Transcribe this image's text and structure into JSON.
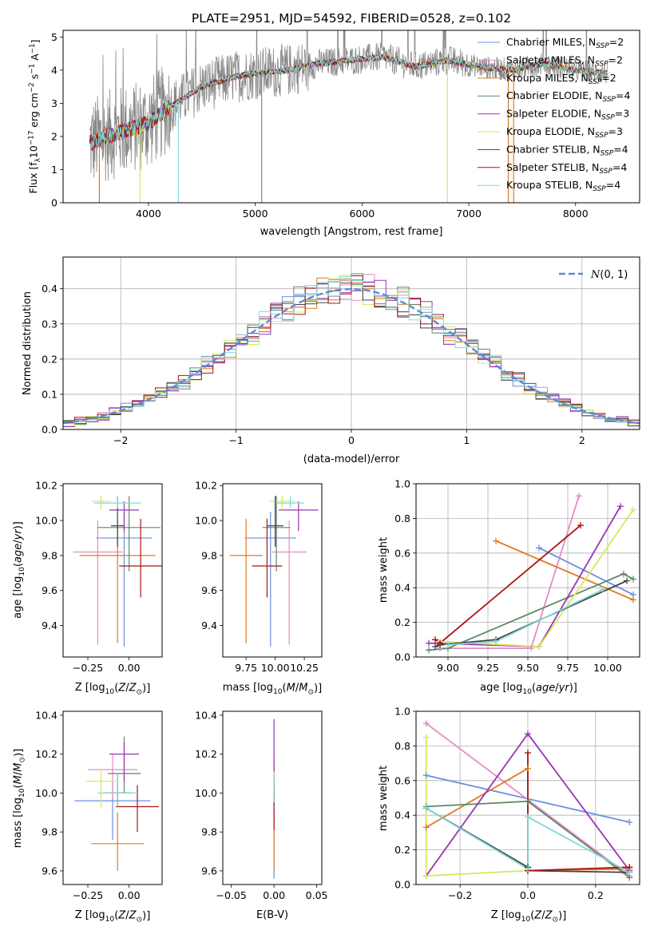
{
  "title": "PLATE=2951, MJD=54592, FIBERID=0528, z=0.102",
  "colors": {
    "chabrier_miles": "#6a8fe0",
    "salpeter_miles": "#e48bc4",
    "kroupa_miles": "#e07a22",
    "chabrier_elodie": "#5b8a62",
    "salpeter_elodie": "#9c34b8",
    "kroupa_elodie": "#d6e85a",
    "chabrier_stelib": "#444444",
    "salpeter_stelib": "#a81515",
    "kroupa_stelib": "#7fd9dd",
    "data_gray": "#888888",
    "gaussian": "#5b8bd6"
  },
  "chart_data": [
    {
      "id": "spectrum",
      "type": "line",
      "xlabel": "wavelength [Angstrom, rest frame]",
      "ylabel": "Flux [f_λ 10^-17 erg cm^-2 s^-1 A^-1]",
      "xlim": [
        3200,
        8600
      ],
      "ylim": [
        0,
        5.2
      ],
      "xticks": [
        "4000",
        "5000",
        "6000",
        "7000",
        "8000"
      ],
      "yticks": [
        "0",
        "1",
        "2",
        "3",
        "4",
        "5"
      ],
      "continuum": {
        "x": [
          3450,
          3600,
          3800,
          4000,
          4200,
          4500,
          4800,
          5000,
          5300,
          5600,
          5900,
          6200,
          6500,
          6800,
          7100,
          7400,
          7700,
          8000,
          8300
        ],
        "y": [
          1.8,
          2.0,
          2.2,
          2.4,
          2.9,
          3.5,
          3.8,
          3.9,
          4.0,
          4.2,
          4.3,
          4.4,
          4.1,
          4.3,
          4.1,
          4.0,
          4.2,
          4.0,
          3.9
        ]
      },
      "legend": [
        {
          "name": "Chabrier MILES, N_SSP=2",
          "key": "chabrier_miles"
        },
        {
          "name": "Salpeter MILES, N_SSP=2",
          "key": "salpeter_miles"
        },
        {
          "name": "Kroupa MILES, N_SSP=2",
          "key": "kroupa_miles"
        },
        {
          "name": "Chabrier ELODIE, N_SSP=4",
          "key": "chabrier_elodie"
        },
        {
          "name": "Salpeter ELODIE, N_SSP=3",
          "key": "salpeter_elodie"
        },
        {
          "name": "Kroupa ELODIE, N_SSP=3",
          "key": "kroupa_elodie"
        },
        {
          "name": "Chabrier STELIB, N_SSP=4",
          "key": "chabrier_stelib"
        },
        {
          "name": "Salpeter STELIB, N_SSP=4",
          "key": "salpeter_stelib"
        },
        {
          "name": "Kroupa STELIB, N_SSP=4",
          "key": "kroupa_stelib"
        }
      ]
    },
    {
      "id": "residuals",
      "type": "line",
      "xlabel": "(data-model)/error",
      "ylabel": "Normed distribution",
      "xlim": [
        -2.5,
        2.5
      ],
      "ylim": [
        0,
        0.49
      ],
      "xticks": [
        "-2",
        "-1",
        "0",
        "1",
        "2"
      ],
      "yticks": [
        "0.0",
        "0.1",
        "0.2",
        "0.3",
        "0.4"
      ],
      "gaussian_label": "N(0,1)",
      "grid": true,
      "bins": {
        "start": -2.5,
        "width": 0.1,
        "count": 50
      }
    },
    {
      "id": "z_age",
      "type": "scatter",
      "xlabel": "Z [log10(Z/Z☉)]",
      "ylabel": "age [log10(age/yr)]",
      "xlim": [
        -0.4,
        0.2
      ],
      "ylim": [
        9.22,
        10.21
      ],
      "xticks": [
        "-0.25",
        "0.00"
      ],
      "yticks": [
        "9.4",
        "9.6",
        "9.8",
        "10.0",
        "10.2"
      ],
      "points": [
        {
          "key": "chabrier_miles",
          "x": -0.03,
          "y": 9.9,
          "xerr": 0.17,
          "yerr": [
            0.62,
            0.15
          ]
        },
        {
          "key": "salpeter_miles",
          "x": -0.19,
          "y": 9.82,
          "xerr": 0.15,
          "yerr": [
            0.53,
            0.18
          ]
        },
        {
          "key": "kroupa_miles",
          "x": -0.07,
          "y": 9.8,
          "xerr": 0.23,
          "yerr": [
            0.5,
            0.21
          ]
        },
        {
          "key": "chabrier_elodie",
          "x": 0.0,
          "y": 9.96,
          "xerr": 0.19,
          "yerr": [
            0.25,
            0.18
          ]
        },
        {
          "key": "salpeter_elodie",
          "x": -0.03,
          "y": 10.06,
          "xerr": 0.09,
          "yerr": [
            0.12,
            0.05
          ]
        },
        {
          "key": "kroupa_elodie",
          "x": -0.17,
          "y": 10.11,
          "xerr": 0.06,
          "yerr": [
            0.05,
            0.03
          ]
        },
        {
          "key": "chabrier_stelib",
          "x": -0.07,
          "y": 9.97,
          "xerr": 0.04,
          "yerr": [
            0.12,
            0.17
          ]
        },
        {
          "key": "salpeter_stelib",
          "x": 0.07,
          "y": 9.74,
          "xerr": 0.13,
          "yerr": [
            0.18,
            0.27
          ]
        },
        {
          "key": "kroupa_stelib",
          "x": -0.07,
          "y": 10.1,
          "xerr": 0.14,
          "yerr": [
            0.03,
            0.04
          ]
        }
      ]
    },
    {
      "id": "mass_age",
      "type": "scatter",
      "xlabel": "mass [log10(M/M☉)]",
      "ylabel": "",
      "xlim": [
        9.55,
        10.4
      ],
      "ylim": [
        9.22,
        10.21
      ],
      "xticks": [
        "9.75",
        "10.00",
        "10.25"
      ],
      "yticks": [
        "9.4",
        "9.6",
        "9.8",
        "10.0",
        "10.2"
      ],
      "points": [
        {
          "key": "chabrier_miles",
          "x": 9.96,
          "y": 9.9,
          "xerr": 0.22,
          "yerr": [
            0.62,
            0.15
          ]
        },
        {
          "key": "salpeter_miles",
          "x": 10.12,
          "y": 9.82,
          "xerr": 0.15,
          "yerr": [
            0.53,
            0.18
          ]
        },
        {
          "key": "kroupa_miles",
          "x": 9.75,
          "y": 9.8,
          "xerr": 0.14,
          "yerr": [
            0.5,
            0.21
          ]
        },
        {
          "key": "chabrier_elodie",
          "x": 10.01,
          "y": 9.96,
          "xerr": 0.12,
          "yerr": [
            0.25,
            0.18
          ]
        },
        {
          "key": "salpeter_elodie",
          "x": 10.2,
          "y": 10.06,
          "xerr": 0.17,
          "yerr": [
            0.12,
            0.05
          ]
        },
        {
          "key": "kroupa_elodie",
          "x": 10.06,
          "y": 10.11,
          "xerr": 0.11,
          "yerr": [
            0.05,
            0.03
          ]
        },
        {
          "key": "chabrier_stelib",
          "x": 10.0,
          "y": 9.97,
          "xerr": 0.07,
          "yerr": [
            0.12,
            0.17
          ]
        },
        {
          "key": "salpeter_stelib",
          "x": 9.93,
          "y": 9.74,
          "xerr": 0.13,
          "yerr": [
            0.18,
            0.27
          ]
        },
        {
          "key": "kroupa_stelib",
          "x": 10.13,
          "y": 10.1,
          "xerr": 0.12,
          "yerr": [
            0.03,
            0.04
          ]
        }
      ]
    },
    {
      "id": "age_weight",
      "type": "line",
      "xlabel": "age [log10(age/yr)]",
      "ylabel": "mass weight",
      "xlim": [
        8.8,
        10.2
      ],
      "ylim": [
        0,
        1.0
      ],
      "xticks": [
        "9.00",
        "9.25",
        "9.50",
        "9.75",
        "10.00"
      ],
      "yticks": [
        "0.0",
        "0.2",
        "0.4",
        "0.6",
        "0.8",
        "1.0"
      ],
      "grid": true,
      "series": [
        {
          "key": "chabrier_miles",
          "x": [
            9.57,
            10.16
          ],
          "y": [
            0.63,
            0.36
          ]
        },
        {
          "key": "salpeter_miles",
          "x": [
            8.95,
            9.52,
            9.82
          ],
          "y": [
            0.05,
            0.05,
            0.93
          ]
        },
        {
          "key": "kroupa_miles",
          "x": [
            9.3,
            10.16
          ],
          "y": [
            0.67,
            0.33
          ]
        },
        {
          "key": "chabrier_elodie",
          "x": [
            8.88,
            9.0,
            10.1,
            10.16
          ],
          "y": [
            0.04,
            0.05,
            0.48,
            0.45
          ]
        },
        {
          "key": "salpeter_elodie",
          "x": [
            8.88,
            9.57,
            10.08
          ],
          "y": [
            0.08,
            0.06,
            0.87
          ]
        },
        {
          "key": "kroupa_elodie",
          "x": [
            8.95,
            9.57,
            10.16
          ],
          "y": [
            0.09,
            0.06,
            0.85
          ]
        },
        {
          "key": "chabrier_stelib",
          "x": [
            8.92,
            8.95,
            9.3,
            10.12
          ],
          "y": [
            0.06,
            0.07,
            0.1,
            0.44
          ]
        },
        {
          "key": "salpeter_stelib",
          "x": [
            8.92,
            8.95,
            9.83
          ],
          "y": [
            0.1,
            0.08,
            0.76
          ]
        },
        {
          "key": "kroupa_stelib",
          "x": [
            9.0,
            9.3,
            9.97
          ],
          "y": [
            0.07,
            0.09,
            0.39
          ]
        }
      ]
    },
    {
      "id": "z_mass",
      "type": "scatter",
      "xlabel": "Z [log10(Z/Z☉)]",
      "ylabel": "mass [log10(M/M☉)]",
      "xlim": [
        -0.4,
        0.2
      ],
      "ylim": [
        9.53,
        10.42
      ],
      "xticks": [
        "-0.25",
        "0.00"
      ],
      "yticks": [
        "9.6",
        "9.8",
        "10.0",
        "10.2",
        "10.4"
      ],
      "points": [
        {
          "key": "chabrier_miles",
          "x": -0.1,
          "y": 9.96,
          "xerr": 0.23,
          "yerr": [
            0.2,
            0.1
          ]
        },
        {
          "key": "salpeter_miles",
          "x": -0.1,
          "y": 10.12,
          "xerr": 0.15,
          "yerr": [
            0.15,
            0.08
          ]
        },
        {
          "key": "kroupa_miles",
          "x": -0.07,
          "y": 9.74,
          "xerr": 0.16,
          "yerr": [
            0.14,
            0.16
          ]
        },
        {
          "key": "chabrier_elodie",
          "x": -0.03,
          "y": 10.1,
          "xerr": 0.1,
          "yerr": [
            0.1,
            0.19
          ]
        },
        {
          "key": "salpeter_elodie",
          "x": -0.03,
          "y": 10.2,
          "xerr": 0.09,
          "yerr": [
            0.14,
            0.06
          ]
        },
        {
          "key": "kroupa_elodie",
          "x": -0.17,
          "y": 10.06,
          "xerr": 0.09,
          "yerr": [
            0.14,
            0.06
          ]
        },
        {
          "key": "chabrier_stelib",
          "x": -0.07,
          "y": 10.0,
          "xerr": 0.08,
          "yerr": [
            0.07,
            0.1
          ]
        },
        {
          "key": "salpeter_stelib",
          "x": 0.05,
          "y": 9.93,
          "xerr": 0.13,
          "yerr": [
            0.13,
            0.11
          ]
        },
        {
          "key": "kroupa_stelib",
          "x": -0.07,
          "y": 10.0,
          "xerr": 0.12,
          "yerr": [
            0.07,
            0.1
          ]
        }
      ]
    },
    {
      "id": "ebv_mass",
      "type": "scatter",
      "xlabel": "E(B-V)",
      "ylabel": "",
      "xlim": [
        -0.06,
        0.056
      ],
      "ylim": [
        9.53,
        10.42
      ],
      "xticks": [
        "-0.05",
        "0.00",
        "0.05"
      ],
      "yticks": [
        "9.6",
        "9.8",
        "10.0",
        "10.2",
        "10.4"
      ],
      "points": [
        {
          "key": "chabrier_miles",
          "x": 0,
          "y": 9.96,
          "yerr": [
            0.4,
            0.1
          ]
        },
        {
          "key": "salpeter_miles",
          "x": 0,
          "y": 10.12,
          "yerr": [
            0.16,
            0.08
          ]
        },
        {
          "key": "kroupa_miles",
          "x": 0,
          "y": 9.74,
          "yerr": [
            0.14,
            0.16
          ]
        },
        {
          "key": "chabrier_elodie",
          "x": 0,
          "y": 10.1,
          "yerr": [
            0.14,
            0.04
          ]
        },
        {
          "key": "salpeter_elodie",
          "x": 0,
          "y": 10.2,
          "yerr": [
            0.22,
            0.18
          ]
        },
        {
          "key": "kroupa_elodie",
          "x": 0,
          "y": 10.06,
          "yerr": [
            0.08,
            0.05
          ]
        },
        {
          "key": "chabrier_stelib",
          "x": 0,
          "y": 10.0,
          "yerr": [
            0.06,
            0.06
          ]
        },
        {
          "key": "salpeter_stelib",
          "x": 0,
          "y": 9.93,
          "yerr": [
            0.12,
            0.1
          ]
        },
        {
          "key": "kroupa_stelib",
          "x": 0,
          "y": 10.0,
          "yerr": [
            0.05,
            0.1
          ]
        }
      ]
    },
    {
      "id": "z_weight",
      "type": "line",
      "xlabel": "Z [log10(Z/Z☉)]",
      "ylabel": "mass weight",
      "xlim": [
        -0.33,
        0.33
      ],
      "ylim": [
        0,
        1.0
      ],
      "xticks": [
        "-0.2",
        "0.0",
        "0.2"
      ],
      "yticks": [
        "0.0",
        "0.2",
        "0.4",
        "0.6",
        "0.8",
        "1.0"
      ],
      "grid": true,
      "series": [
        {
          "key": "chabrier_miles",
          "x": [
            -0.3,
            0.3
          ],
          "y": [
            0.63,
            0.36
          ]
        },
        {
          "key": "salpeter_miles",
          "x": [
            -0.3,
            0.3
          ],
          "y": [
            0.93,
            0.05
          ]
        },
        {
          "key": "kroupa_miles",
          "x": [
            -0.3,
            0.0,
            0.0,
            0.3
          ],
          "y": [
            0.33,
            0.67,
            0.08,
            0.09
          ]
        },
        {
          "key": "chabrier_elodie",
          "x": [
            -0.3,
            0.0,
            0.3
          ],
          "y": [
            0.45,
            0.48,
            0.04
          ]
        },
        {
          "key": "salpeter_elodie",
          "x": [
            -0.3,
            0.0,
            0.3
          ],
          "y": [
            0.05,
            0.87,
            0.08
          ]
        },
        {
          "key": "kroupa_elodie",
          "x": [
            -0.3,
            -0.3,
            0.0,
            0.0
          ],
          "y": [
            0.85,
            0.05,
            0.08,
            0.39
          ]
        },
        {
          "key": "chabrier_stelib",
          "x": [
            -0.3,
            0.0,
            0.0,
            0.3
          ],
          "y": [
            0.44,
            0.1,
            0.08,
            0.07
          ]
        },
        {
          "key": "salpeter_stelib",
          "x": [
            0.0,
            0.0,
            0.3
          ],
          "y": [
            0.76,
            0.08,
            0.1
          ]
        },
        {
          "key": "kroupa_stelib",
          "x": [
            -0.3,
            0.0,
            0.0,
            0.3
          ],
          "y": [
            0.44,
            0.09,
            0.39,
            0.07
          ]
        }
      ]
    }
  ]
}
